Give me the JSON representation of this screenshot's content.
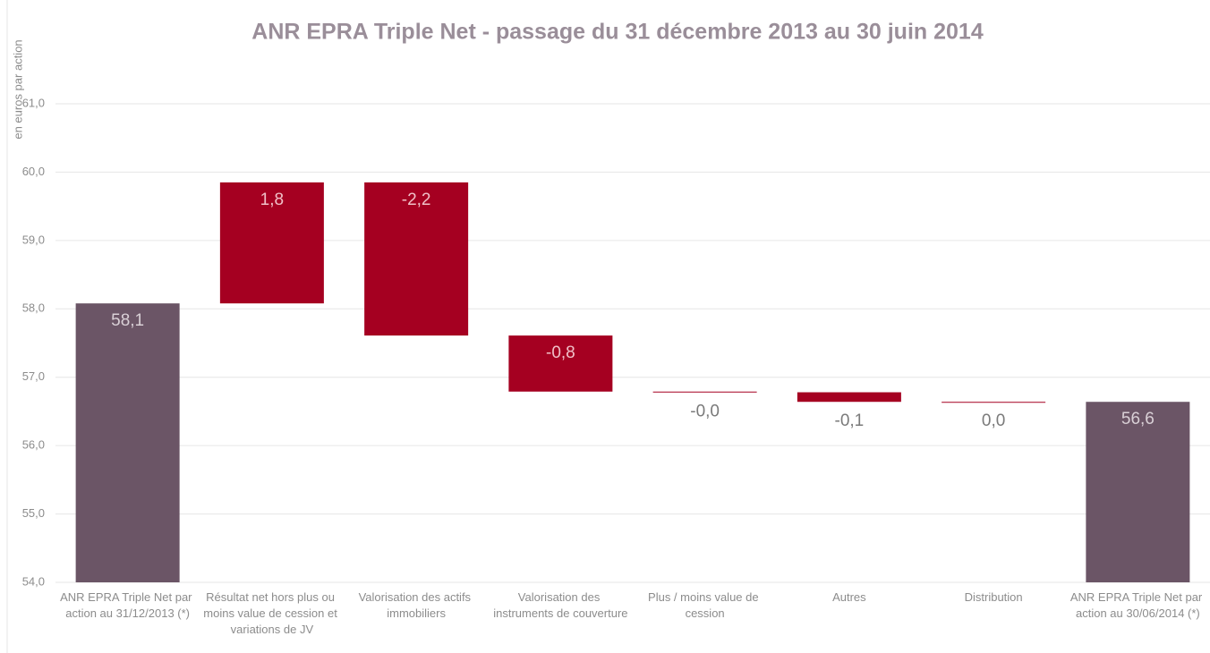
{
  "chart_data": {
    "type": "waterfall",
    "title": "ANR EPRA Triple Net - passage du 31 décembre 2013 au 30 juin 2014",
    "y_label": "en euros par action",
    "categories": [
      "ANR EPRA Triple Net par action au 31/12/2013 (*)",
      "Résultat net hors plus ou moins value de cession et variations de JV",
      "Valorisation des actifs immobiliers",
      "Valorisation des instruments de couverture",
      "Plus / moins value de cession",
      "Autres",
      "Distribution",
      "ANR EPRA Triple Net par action au 30/06/2014 (*)"
    ],
    "measure": [
      "total",
      "relative",
      "relative",
      "relative",
      "relative",
      "relative",
      "relative",
      "total"
    ],
    "values": [
      58.08,
      1.77,
      -2.24,
      -0.82,
      -0.01,
      -0.14,
      0,
      56.64
    ],
    "value_labels": [
      "58,1",
      "1,8",
      "-2,2",
      "-0,8",
      "-0,0",
      "-0,1",
      "0,0",
      "56,6"
    ],
    "total_color": "#6b5566",
    "color": "#a50021",
    "ylim": [
      54,
      61
    ],
    "yticks": [
      {
        "value": 54,
        "label": "54,0"
      },
      {
        "value": 55,
        "label": "55,0"
      },
      {
        "value": 56,
        "label": "56,0"
      },
      {
        "value": 57,
        "label": "57,0"
      },
      {
        "value": 58,
        "label": "58,0"
      },
      {
        "value": 59,
        "label": "59,0"
      },
      {
        "value": 60,
        "label": "60,0"
      },
      {
        "value": 61,
        "label": "61,0"
      }
    ],
    "grid": true
  }
}
